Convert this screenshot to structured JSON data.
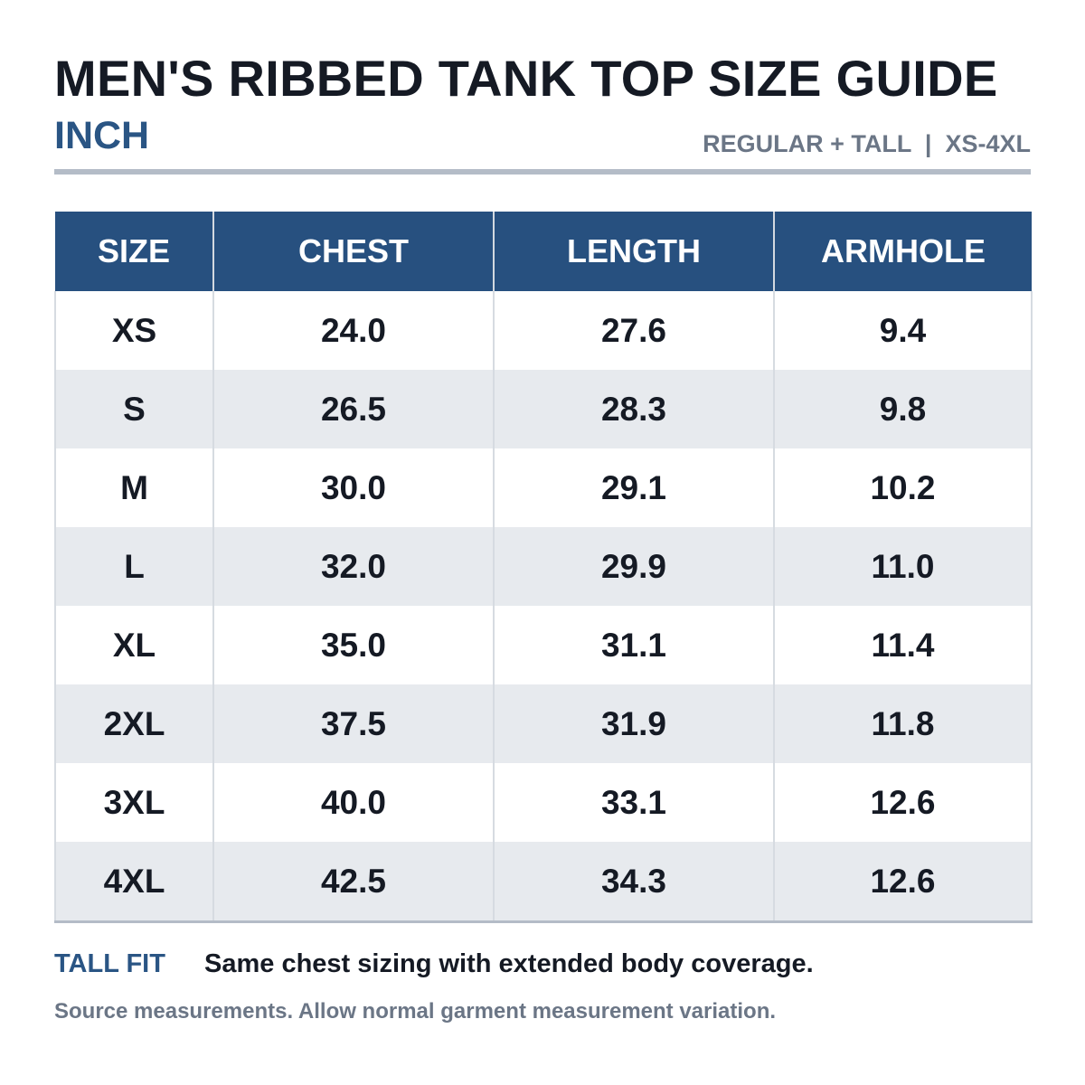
{
  "header": {
    "title": "MEN'S RIBBED TANK TOP SIZE GUIDE",
    "unit": "INCH",
    "variant": "REGULAR + TALL  |  XS-4XL"
  },
  "table": {
    "columns": [
      "SIZE",
      "CHEST",
      "LENGTH",
      "ARMHOLE"
    ],
    "rows": [
      [
        "XS",
        "24.0",
        "27.6",
        "9.4"
      ],
      [
        "S",
        "26.5",
        "28.3",
        "9.8"
      ],
      [
        "M",
        "30.0",
        "29.1",
        "10.2"
      ],
      [
        "L",
        "32.0",
        "29.9",
        "11.0"
      ],
      [
        "XL",
        "35.0",
        "31.1",
        "11.4"
      ],
      [
        "2XL",
        "37.5",
        "31.9",
        "11.8"
      ],
      [
        "3XL",
        "40.0",
        "33.1",
        "12.6"
      ],
      [
        "4XL",
        "42.5",
        "34.3",
        "12.6"
      ]
    ]
  },
  "note": {
    "label": "TALL FIT",
    "text": "Same chest sizing with extended body coverage."
  },
  "source": "Source measurements. Allow normal garment measurement variation.",
  "colors": {
    "header_fill": "#27507f",
    "accent_text": "#2a5584",
    "muted_text": "#6b7686",
    "stripe": "#e7eaee"
  }
}
